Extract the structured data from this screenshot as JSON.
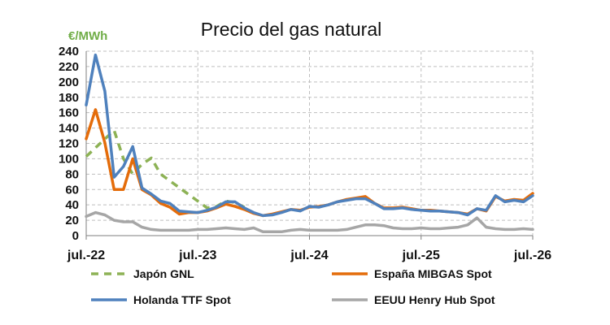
{
  "colors": {
    "japon": "#8DB255",
    "espana": "#E46C0A",
    "holanda": "#4F81BD",
    "eeuu": "#A6A6A6",
    "grid": "#BFBFBF",
    "unit": "#70AD47"
  },
  "chart_data": {
    "type": "line",
    "title": "Precio del gas natural",
    "ylabel": "€/MWh",
    "xlabel": "",
    "ylim": [
      0,
      240
    ],
    "yticks": [
      0,
      20,
      40,
      60,
      80,
      100,
      120,
      140,
      160,
      180,
      200,
      220,
      240
    ],
    "x_range": [
      "2022-07",
      "2026-07"
    ],
    "x_tick_labels": [
      {
        "date": "2022-07",
        "label": "jul.-22"
      },
      {
        "date": "2023-07",
        "label": "jul.-23"
      },
      {
        "date": "2024-07",
        "label": "jul.-24"
      },
      {
        "date": "2025-07",
        "label": "jul.-25"
      },
      {
        "date": "2026-07",
        "label": "jul.-26"
      }
    ],
    "grid": true,
    "legend_position": "bottom",
    "series": [
      {
        "name": "Japón GNL",
        "color": "#8DB255",
        "dash": "dashed",
        "points": [
          [
            "2022-07",
            103
          ],
          [
            "2022-10",
            137
          ],
          [
            "2022-11",
            100
          ],
          [
            "2022-12",
            80
          ],
          [
            "2023-01",
            93
          ],
          [
            "2023-02",
            101
          ],
          [
            "2023-03",
            80
          ],
          [
            "2023-08",
            36
          ],
          [
            "2023-09",
            38
          ],
          [
            "2023-10",
            45
          ],
          [
            "2023-11",
            43
          ],
          [
            "2023-12",
            37
          ]
        ]
      },
      {
        "name": "España MIBGAS Spot",
        "color": "#E46C0A",
        "dash": "solid",
        "points": [
          [
            "2022-07",
            126
          ],
          [
            "2022-08",
            164
          ],
          [
            "2022-09",
            121
          ],
          [
            "2022-10",
            60
          ],
          [
            "2022-11",
            60
          ],
          [
            "2022-12",
            100
          ],
          [
            "2023-01",
            60
          ],
          [
            "2023-02",
            53
          ],
          [
            "2023-03",
            42
          ],
          [
            "2023-04",
            37
          ],
          [
            "2023-05",
            28
          ],
          [
            "2023-06",
            30
          ],
          [
            "2023-07",
            30
          ],
          [
            "2023-08",
            32
          ],
          [
            "2023-09",
            36
          ],
          [
            "2023-10",
            41
          ],
          [
            "2023-11",
            38
          ],
          [
            "2023-12",
            34
          ],
          [
            "2024-01",
            29
          ],
          [
            "2024-02",
            26
          ],
          [
            "2024-03",
            28
          ],
          [
            "2024-04",
            31
          ],
          [
            "2024-05",
            34
          ],
          [
            "2024-06",
            33
          ],
          [
            "2024-07",
            37
          ],
          [
            "2024-08",
            38
          ],
          [
            "2024-09",
            40
          ],
          [
            "2024-10",
            44
          ],
          [
            "2024-11",
            47
          ],
          [
            "2024-12",
            49
          ],
          [
            "2025-01",
            51
          ],
          [
            "2025-02",
            42
          ],
          [
            "2025-03",
            36
          ],
          [
            "2025-04",
            36
          ],
          [
            "2025-05",
            37
          ],
          [
            "2025-06",
            35
          ],
          [
            "2025-07",
            33
          ],
          [
            "2025-08",
            33
          ],
          [
            "2025-09",
            32
          ],
          [
            "2025-10",
            31
          ],
          [
            "2025-11",
            30
          ],
          [
            "2025-12",
            28
          ],
          [
            "2026-01",
            35
          ],
          [
            "2026-02",
            32
          ],
          [
            "2026-03",
            51
          ],
          [
            "2026-04",
            45
          ],
          [
            "2026-05",
            47
          ],
          [
            "2026-06",
            46
          ],
          [
            "2026-07",
            55
          ]
        ]
      },
      {
        "name": "Holanda TTF Spot",
        "color": "#4F81BD",
        "dash": "solid",
        "points": [
          [
            "2022-07",
            170
          ],
          [
            "2022-08",
            235
          ],
          [
            "2022-09",
            188
          ],
          [
            "2022-10",
            76
          ],
          [
            "2022-11",
            90
          ],
          [
            "2022-12",
            116
          ],
          [
            "2023-01",
            62
          ],
          [
            "2023-02",
            54
          ],
          [
            "2023-03",
            45
          ],
          [
            "2023-04",
            42
          ],
          [
            "2023-05",
            32
          ],
          [
            "2023-06",
            31
          ],
          [
            "2023-07",
            30
          ],
          [
            "2023-08",
            33
          ],
          [
            "2023-09",
            37
          ],
          [
            "2023-10",
            44
          ],
          [
            "2023-11",
            44
          ],
          [
            "2023-12",
            36
          ],
          [
            "2024-01",
            30
          ],
          [
            "2024-02",
            26
          ],
          [
            "2024-03",
            27
          ],
          [
            "2024-04",
            30
          ],
          [
            "2024-05",
            34
          ],
          [
            "2024-06",
            32
          ],
          [
            "2024-07",
            38
          ],
          [
            "2024-08",
            37
          ],
          [
            "2024-09",
            40
          ],
          [
            "2024-10",
            44
          ],
          [
            "2024-11",
            46
          ],
          [
            "2024-12",
            48
          ],
          [
            "2025-01",
            48
          ],
          [
            "2025-02",
            42
          ],
          [
            "2025-03",
            35
          ],
          [
            "2025-04",
            35
          ],
          [
            "2025-05",
            36
          ],
          [
            "2025-06",
            34
          ],
          [
            "2025-07",
            33
          ],
          [
            "2025-08",
            32
          ],
          [
            "2025-09",
            32
          ],
          [
            "2025-10",
            31
          ],
          [
            "2025-11",
            30
          ],
          [
            "2025-12",
            27
          ],
          [
            "2026-01",
            35
          ],
          [
            "2026-02",
            33
          ],
          [
            "2026-03",
            52
          ],
          [
            "2026-04",
            44
          ],
          [
            "2026-05",
            46
          ],
          [
            "2026-06",
            44
          ],
          [
            "2026-07",
            52
          ]
        ]
      },
      {
        "name": "EEUU Henry Hub Spot",
        "color": "#A6A6A6",
        "dash": "solid",
        "points": [
          [
            "2022-07",
            25
          ],
          [
            "2022-08",
            30
          ],
          [
            "2022-09",
            27
          ],
          [
            "2022-10",
            20
          ],
          [
            "2022-11",
            18
          ],
          [
            "2022-12",
            18
          ],
          [
            "2023-01",
            11
          ],
          [
            "2023-02",
            8
          ],
          [
            "2023-03",
            7
          ],
          [
            "2023-04",
            7
          ],
          [
            "2023-05",
            7
          ],
          [
            "2023-06",
            7
          ],
          [
            "2023-07",
            8
          ],
          [
            "2023-08",
            8
          ],
          [
            "2023-09",
            9
          ],
          [
            "2023-10",
            10
          ],
          [
            "2023-11",
            9
          ],
          [
            "2023-12",
            8
          ],
          [
            "2024-01",
            10
          ],
          [
            "2024-02",
            5
          ],
          [
            "2024-03",
            5
          ],
          [
            "2024-04",
            5
          ],
          [
            "2024-05",
            7
          ],
          [
            "2024-06",
            8
          ],
          [
            "2024-07",
            7
          ],
          [
            "2024-08",
            7
          ],
          [
            "2024-09",
            7
          ],
          [
            "2024-10",
            7
          ],
          [
            "2024-11",
            8
          ],
          [
            "2024-12",
            11
          ],
          [
            "2025-01",
            14
          ],
          [
            "2025-02",
            14
          ],
          [
            "2025-03",
            13
          ],
          [
            "2025-04",
            10
          ],
          [
            "2025-05",
            9
          ],
          [
            "2025-06",
            9
          ],
          [
            "2025-07",
            10
          ],
          [
            "2025-08",
            9
          ],
          [
            "2025-09",
            9
          ],
          [
            "2025-10",
            10
          ],
          [
            "2025-11",
            11
          ],
          [
            "2025-12",
            14
          ],
          [
            "2026-01",
            23
          ],
          [
            "2026-02",
            11
          ],
          [
            "2026-03",
            9
          ],
          [
            "2026-04",
            8
          ],
          [
            "2026-05",
            8
          ],
          [
            "2026-06",
            9
          ],
          [
            "2026-07",
            8
          ]
        ]
      }
    ]
  }
}
